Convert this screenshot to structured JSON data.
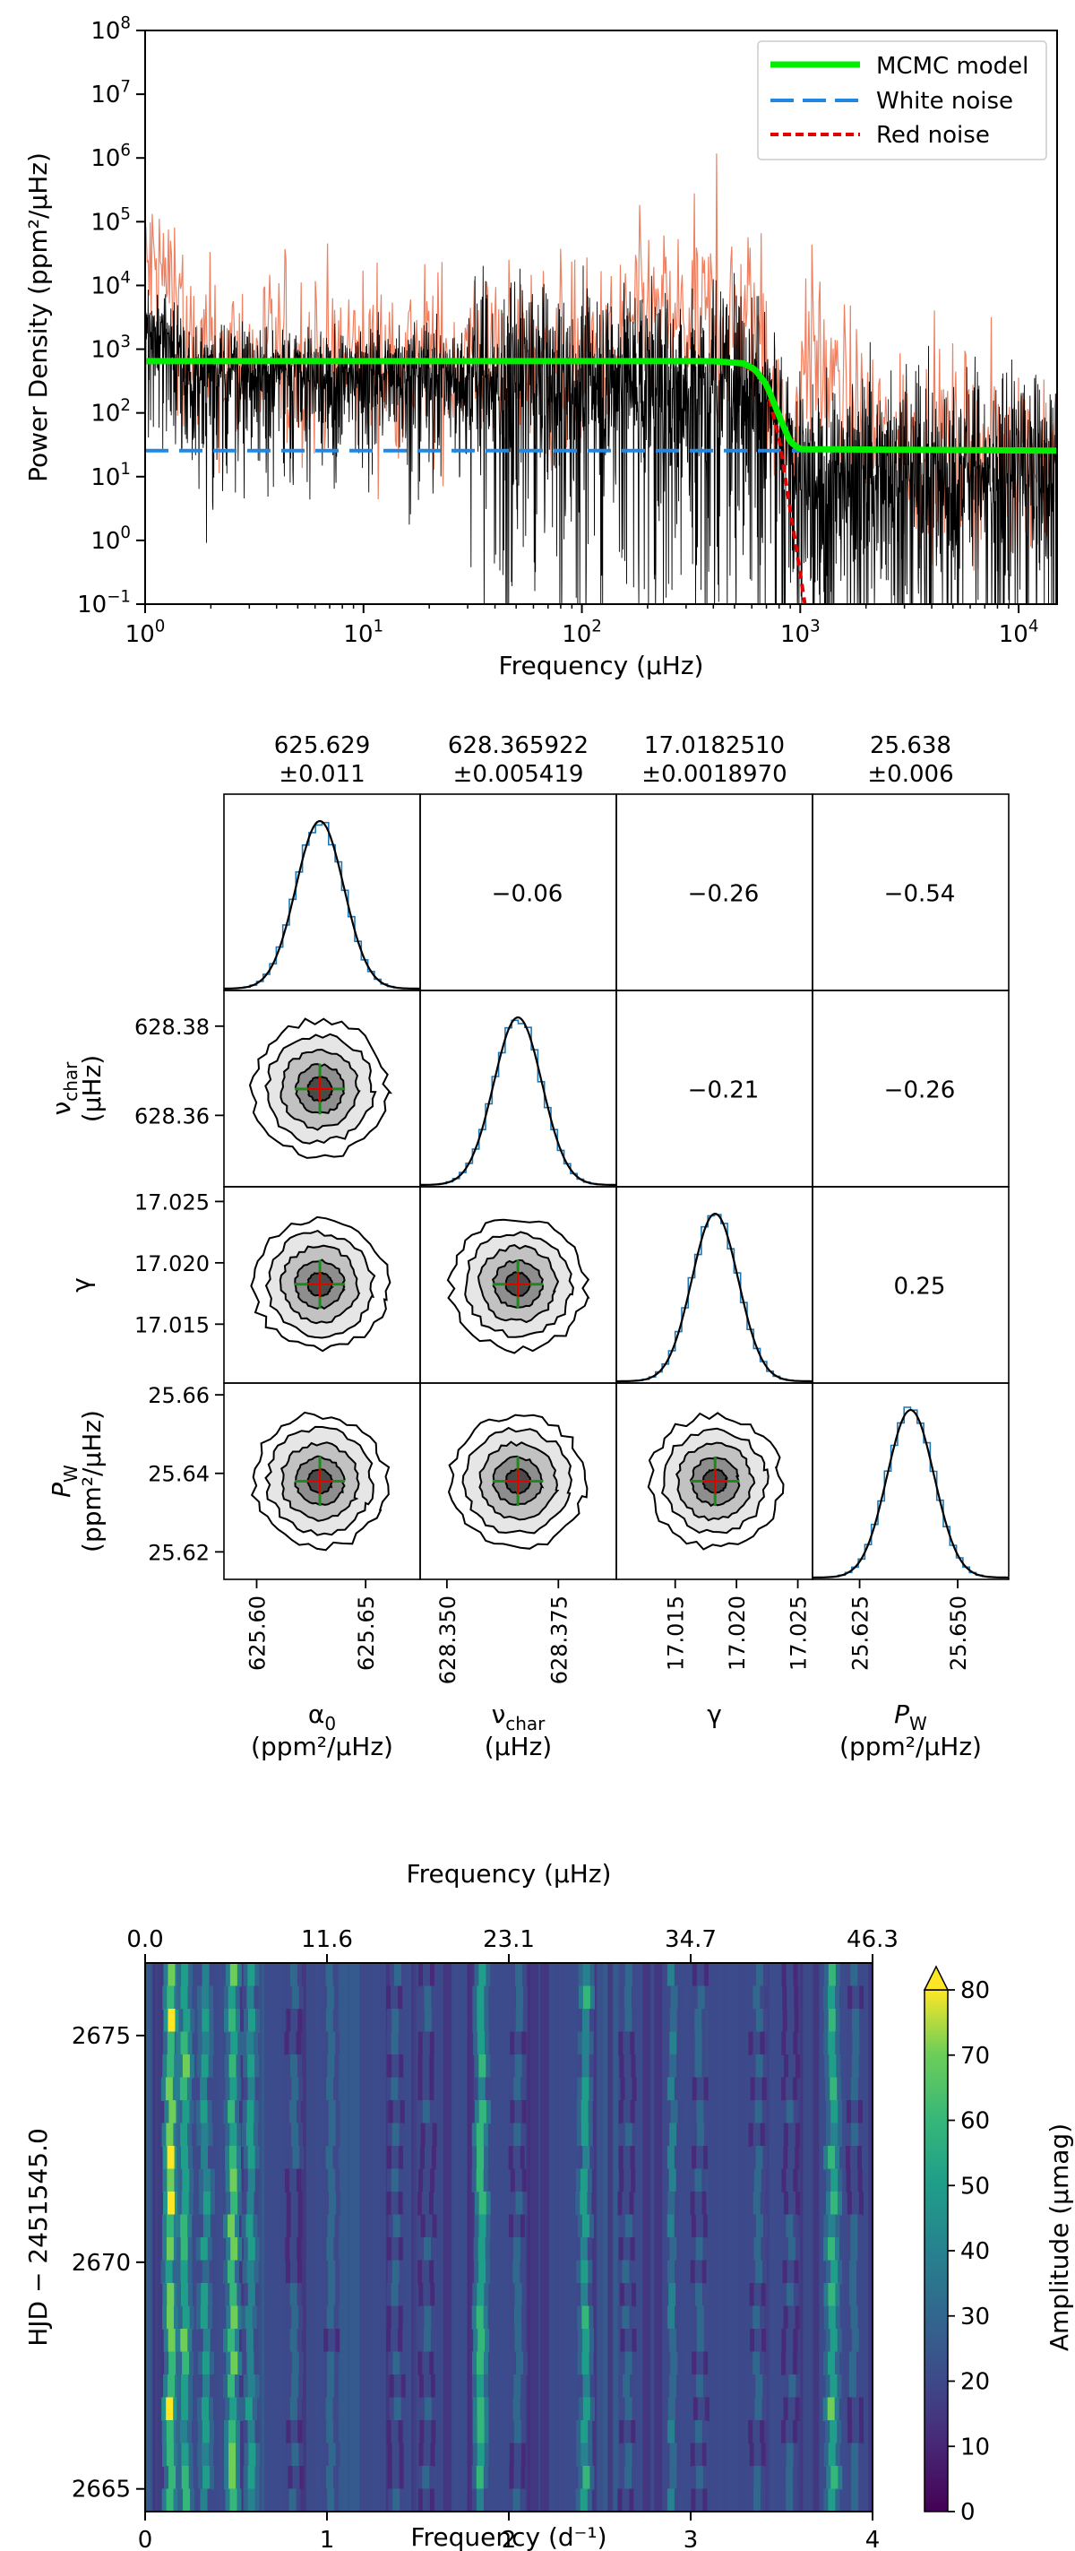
{
  "chart_data": [
    {
      "type": "line",
      "xlabel": "Frequency (μHz)",
      "ylabel": "Power Density (ppm²/μHz)",
      "xscale": "log",
      "yscale": "log",
      "xlim": [
        1,
        15000
      ],
      "ylim": [
        0.1,
        100000000
      ],
      "xticks": [
        "10^0",
        "10^1",
        "10^2",
        "10^3",
        "10^4"
      ],
      "yticks": [
        "10^-1",
        "10^0",
        "10^1",
        "10^2",
        "10^3",
        "10^4",
        "10^5",
        "10^6",
        "10^7",
        "10^8"
      ],
      "legend_position": "top-right",
      "series": [
        {
          "name": "MCMC model",
          "color": "#00ee00",
          "style": "solid",
          "x": [
            1,
            100,
            400,
            550,
            620,
            700,
            800,
            900,
            1000,
            15000
          ],
          "values": [
            650,
            650,
            648,
            600,
            480,
            280,
            90,
            35,
            27,
            25.6
          ]
        },
        {
          "name": "White noise",
          "color": "#1f88e5",
          "style": "dashed",
          "x": [
            1,
            15000
          ],
          "values": [
            25.6,
            25.6
          ]
        },
        {
          "name": "Red noise",
          "color": "#e00000",
          "style": "dotted",
          "x": [
            500,
            620,
            700,
            800,
            900,
            1000,
            1050
          ],
          "values": [
            620,
            450,
            250,
            40,
            3,
            0.3,
            0.1
          ]
        }
      ]
    },
    {
      "type": "scatter",
      "kind": "corner-plot",
      "parameters": [
        {
          "symbol": "α",
          "sub": "0",
          "unit": "(ppm²/μHz)",
          "title_val": "625.629",
          "title_err": "±0.011",
          "mean": 625.629,
          "sd": 0.011,
          "range": [
            625.585,
            625.675
          ],
          "ticks": [
            625.6,
            625.65
          ],
          "tick_labels": [
            "625.60",
            "625.65"
          ]
        },
        {
          "symbol": "ν",
          "sub": "char",
          "unit": "(μHz)",
          "title_val": "628.365922",
          "title_err": "±0.005419",
          "mean": 628.365922,
          "sd": 0.005419,
          "range": [
            628.344,
            628.388
          ],
          "ticks": [
            628.35,
            628.375
          ],
          "tick_labels": [
            "628.350",
            "628.375"
          ],
          "y_ticks": [
            628.36,
            628.38
          ],
          "y_tick_labels": [
            "628.36",
            "628.38"
          ]
        },
        {
          "symbol": "γ",
          "sub": "",
          "unit": "",
          "title_val": "17.0182510",
          "title_err": "±0.0018970",
          "mean": 17.018251,
          "sd": 0.001897,
          "range": [
            17.0102,
            17.0262
          ],
          "ticks": [
            17.015,
            17.02,
            17.025
          ],
          "tick_labels": [
            "17.015",
            "17.020",
            "17.025"
          ],
          "y_ticks": [
            17.015,
            17.02,
            17.025
          ],
          "y_tick_labels": [
            "17.015",
            "17.020",
            "17.025"
          ]
        },
        {
          "symbol": "P",
          "sub": "W",
          "unit": "(ppm²/μHz)",
          "title_val": "25.638",
          "title_err": "±0.006",
          "mean": 25.638,
          "sd": 0.006,
          "range": [
            25.613,
            25.663
          ],
          "ticks": [
            25.625,
            25.65
          ],
          "tick_labels": [
            "25.625",
            "25.650"
          ],
          "y_ticks": [
            25.62,
            25.64,
            25.66
          ],
          "y_tick_labels": [
            "25.62",
            "25.64",
            "25.66"
          ]
        }
      ],
      "correlations": [
        {
          "row": 0,
          "col": 1,
          "value": "−0.06"
        },
        {
          "row": 0,
          "col": 2,
          "value": "−0.26"
        },
        {
          "row": 0,
          "col": 3,
          "value": "−0.54"
        },
        {
          "row": 1,
          "col": 2,
          "value": "−0.21"
        },
        {
          "row": 1,
          "col": 3,
          "value": "−0.26"
        },
        {
          "row": 2,
          "col": 3,
          "value": "0.25"
        }
      ],
      "histogram_color": "#1f77b4",
      "marker_colors": {
        "mean": "#e00000",
        "error": "#1a8a1a"
      }
    },
    {
      "type": "heatmap",
      "xlabel": "Frequency (d⁻¹)",
      "x2label": "Frequency (μHz)",
      "ylabel": "HJD − 2451545.0",
      "colorbar_label": "Amplitude (μmag)",
      "xlim": [
        0,
        4
      ],
      "x2lim": [
        0,
        46.3
      ],
      "ylim": [
        2664.5,
        2676.6
      ],
      "zlim": [
        0,
        80
      ],
      "colormap": "viridis",
      "xticks": [
        "0",
        "1",
        "2",
        "3",
        "4"
      ],
      "x2ticks": [
        "0.0",
        "11.6",
        "23.1",
        "34.7",
        "46.3"
      ],
      "yticks": [
        "2665",
        "2670",
        "2675"
      ],
      "cbar_ticks": [
        "0",
        "10",
        "20",
        "30",
        "40",
        "50",
        "60",
        "70",
        "80"
      ],
      "peaks": [
        {
          "freq": 0.14,
          "amp": 75
        },
        {
          "freq": 0.22,
          "amp": 62
        },
        {
          "freq": 0.33,
          "amp": 48
        },
        {
          "freq": 0.48,
          "amp": 66
        },
        {
          "freq": 0.58,
          "amp": 50
        },
        {
          "freq": 0.82,
          "amp": 30
        },
        {
          "freq": 1.02,
          "amp": 32
        },
        {
          "freq": 1.38,
          "amp": 30
        },
        {
          "freq": 1.55,
          "amp": 25
        },
        {
          "freq": 1.85,
          "amp": 58
        },
        {
          "freq": 2.05,
          "amp": 30
        },
        {
          "freq": 2.42,
          "amp": 55
        },
        {
          "freq": 2.65,
          "amp": 30
        },
        {
          "freq": 2.9,
          "amp": 38
        },
        {
          "freq": 3.05,
          "amp": 28
        },
        {
          "freq": 3.37,
          "amp": 30
        },
        {
          "freq": 3.55,
          "amp": 28
        },
        {
          "freq": 3.78,
          "amp": 62
        },
        {
          "freq": 3.9,
          "amp": 30
        }
      ]
    }
  ]
}
